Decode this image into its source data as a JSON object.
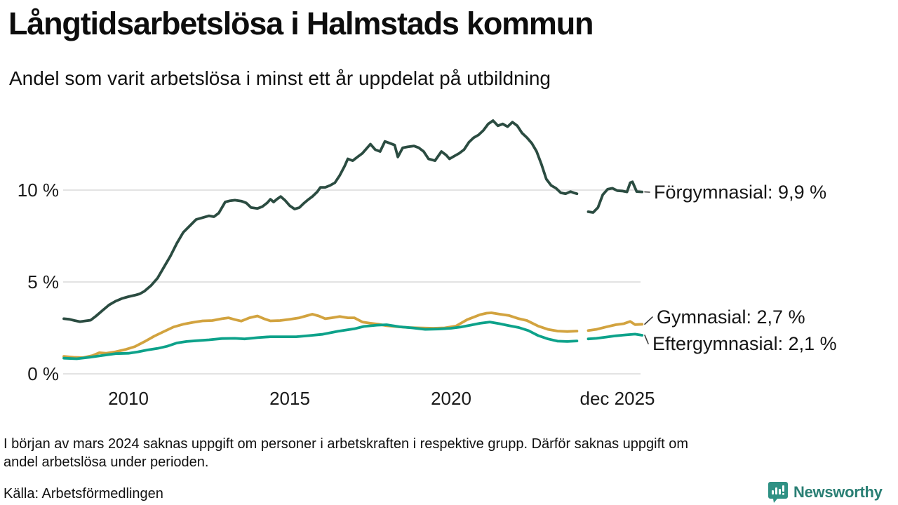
{
  "header": {
    "title": "Långtidsarbetslösa i Halmstads kommun",
    "subtitle": "Andel som varit arbetslösa i minst ett år uppdelat på utbildning"
  },
  "chart_data": {
    "type": "line",
    "title": "Långtidsarbetslösa i Halmstads kommun",
    "subtitle": "Andel som varit arbetslösa i minst ett år uppdelat på utbildning",
    "x_unit": "decimal_year",
    "x_range": [
      2008.0,
      2025.92
    ],
    "ylim": [
      0,
      14.5
    ],
    "grid": "horizontal",
    "gridline_color": "#e3e3e3",
    "data_gap_years": [
      2023.9,
      2024.25
    ],
    "y_ticks": [
      {
        "label": "0 %",
        "value": 0
      },
      {
        "label": "5 %",
        "value": 5
      },
      {
        "label": "10 %",
        "value": 10
      }
    ],
    "x_ticks": [
      {
        "label": "2010",
        "year": 2010
      },
      {
        "label": "2015",
        "year": 2015
      },
      {
        "label": "2020",
        "year": 2020
      },
      {
        "label": "dec 2025",
        "year": 2025.92
      }
    ],
    "series": [
      {
        "name": "Förgymnasial",
        "label": "Förgymnasial: 9,9 %",
        "end_value": 9.9,
        "color": "#2b4c41",
        "segments": [
          [
            [
              2008.0,
              3.0
            ],
            [
              2008.17,
              2.97
            ],
            [
              2008.33,
              2.9
            ],
            [
              2008.5,
              2.84
            ],
            [
              2008.67,
              2.88
            ],
            [
              2008.83,
              2.92
            ],
            [
              2009.0,
              3.15
            ],
            [
              2009.2,
              3.45
            ],
            [
              2009.4,
              3.75
            ],
            [
              2009.6,
              3.95
            ],
            [
              2009.8,
              4.1
            ],
            [
              2010.0,
              4.2
            ],
            [
              2010.2,
              4.28
            ],
            [
              2010.35,
              4.35
            ],
            [
              2010.5,
              4.5
            ],
            [
              2010.7,
              4.8
            ],
            [
              2010.9,
              5.2
            ],
            [
              2011.1,
              5.8
            ],
            [
              2011.3,
              6.4
            ],
            [
              2011.5,
              7.1
            ],
            [
              2011.7,
              7.7
            ],
            [
              2011.9,
              8.05
            ],
            [
              2012.1,
              8.4
            ],
            [
              2012.3,
              8.5
            ],
            [
              2012.5,
              8.6
            ],
            [
              2012.65,
              8.55
            ],
            [
              2012.8,
              8.75
            ],
            [
              2013.0,
              9.35
            ],
            [
              2013.15,
              9.42
            ],
            [
              2013.3,
              9.45
            ],
            [
              2013.5,
              9.4
            ],
            [
              2013.65,
              9.3
            ],
            [
              2013.8,
              9.05
            ],
            [
              2014.0,
              9.0
            ],
            [
              2014.15,
              9.1
            ],
            [
              2014.3,
              9.3
            ],
            [
              2014.4,
              9.5
            ],
            [
              2014.5,
              9.35
            ],
            [
              2014.6,
              9.5
            ],
            [
              2014.72,
              9.65
            ],
            [
              2014.85,
              9.45
            ],
            [
              2015.0,
              9.15
            ],
            [
              2015.15,
              8.97
            ],
            [
              2015.3,
              9.05
            ],
            [
              2015.45,
              9.3
            ],
            [
              2015.55,
              9.45
            ],
            [
              2015.7,
              9.65
            ],
            [
              2015.85,
              9.9
            ],
            [
              2015.95,
              10.15
            ],
            [
              2016.1,
              10.15
            ],
            [
              2016.25,
              10.25
            ],
            [
              2016.4,
              10.4
            ],
            [
              2016.55,
              10.8
            ],
            [
              2016.7,
              11.3
            ],
            [
              2016.8,
              11.7
            ],
            [
              2016.95,
              11.6
            ],
            [
              2017.1,
              11.8
            ],
            [
              2017.25,
              12.0
            ],
            [
              2017.4,
              12.3
            ],
            [
              2017.5,
              12.5
            ],
            [
              2017.65,
              12.2
            ],
            [
              2017.8,
              12.1
            ],
            [
              2017.95,
              12.65
            ],
            [
              2018.1,
              12.55
            ],
            [
              2018.25,
              12.45
            ],
            [
              2018.35,
              11.8
            ],
            [
              2018.5,
              12.3
            ],
            [
              2018.65,
              12.35
            ],
            [
              2018.85,
              12.4
            ],
            [
              2019.0,
              12.3
            ],
            [
              2019.15,
              12.1
            ],
            [
              2019.3,
              11.7
            ],
            [
              2019.5,
              11.6
            ],
            [
              2019.7,
              12.1
            ],
            [
              2019.85,
              11.9
            ],
            [
              2019.95,
              11.7
            ],
            [
              2020.1,
              11.85
            ],
            [
              2020.25,
              12.0
            ],
            [
              2020.4,
              12.2
            ],
            [
              2020.55,
              12.6
            ],
            [
              2020.7,
              12.85
            ],
            [
              2020.85,
              13.0
            ],
            [
              2021.0,
              13.25
            ],
            [
              2021.15,
              13.6
            ],
            [
              2021.3,
              13.78
            ],
            [
              2021.45,
              13.5
            ],
            [
              2021.6,
              13.6
            ],
            [
              2021.75,
              13.45
            ],
            [
              2021.9,
              13.7
            ],
            [
              2022.05,
              13.5
            ],
            [
              2022.2,
              13.1
            ],
            [
              2022.35,
              12.85
            ],
            [
              2022.5,
              12.55
            ],
            [
              2022.65,
              12.1
            ],
            [
              2022.8,
              11.4
            ],
            [
              2022.95,
              10.6
            ],
            [
              2023.1,
              10.25
            ],
            [
              2023.25,
              10.1
            ],
            [
              2023.4,
              9.85
            ],
            [
              2023.55,
              9.8
            ],
            [
              2023.7,
              9.92
            ],
            [
              2023.8,
              9.85
            ],
            [
              2023.9,
              9.8
            ]
          ],
          [
            [
              2024.25,
              8.82
            ],
            [
              2024.4,
              8.78
            ],
            [
              2024.55,
              9.05
            ],
            [
              2024.7,
              9.75
            ],
            [
              2024.85,
              10.05
            ],
            [
              2025.0,
              10.1
            ],
            [
              2025.15,
              9.97
            ],
            [
              2025.3,
              9.95
            ],
            [
              2025.45,
              9.9
            ],
            [
              2025.55,
              10.4
            ],
            [
              2025.62,
              10.45
            ],
            [
              2025.75,
              9.92
            ],
            [
              2025.92,
              9.9
            ]
          ]
        ]
      },
      {
        "name": "Gymnasial",
        "label": "Gymnasial: 2,7 %",
        "end_value": 2.7,
        "color": "#d2a33f",
        "segments": [
          [
            [
              2008.0,
              0.95
            ],
            [
              2008.3,
              0.9
            ],
            [
              2008.6,
              0.88
            ],
            [
              2008.9,
              1.0
            ],
            [
              2009.1,
              1.15
            ],
            [
              2009.3,
              1.12
            ],
            [
              2009.6,
              1.2
            ],
            [
              2009.9,
              1.32
            ],
            [
              2010.2,
              1.48
            ],
            [
              2010.5,
              1.75
            ],
            [
              2010.8,
              2.05
            ],
            [
              2011.1,
              2.3
            ],
            [
              2011.4,
              2.55
            ],
            [
              2011.7,
              2.7
            ],
            [
              2012.0,
              2.8
            ],
            [
              2012.3,
              2.88
            ],
            [
              2012.6,
              2.9
            ],
            [
              2012.9,
              3.0
            ],
            [
              2013.1,
              3.05
            ],
            [
              2013.3,
              2.95
            ],
            [
              2013.5,
              2.87
            ],
            [
              2013.75,
              3.05
            ],
            [
              2014.0,
              3.15
            ],
            [
              2014.2,
              3.0
            ],
            [
              2014.4,
              2.88
            ],
            [
              2014.7,
              2.9
            ],
            [
              2015.0,
              2.97
            ],
            [
              2015.3,
              3.05
            ],
            [
              2015.5,
              3.15
            ],
            [
              2015.7,
              3.25
            ],
            [
              2015.9,
              3.15
            ],
            [
              2016.1,
              3.0
            ],
            [
              2016.3,
              3.05
            ],
            [
              2016.55,
              3.12
            ],
            [
              2016.8,
              3.05
            ],
            [
              2017.0,
              3.05
            ],
            [
              2017.25,
              2.82
            ],
            [
              2017.5,
              2.75
            ],
            [
              2017.75,
              2.7
            ],
            [
              2018.0,
              2.62
            ],
            [
              2018.35,
              2.56
            ],
            [
              2018.7,
              2.52
            ],
            [
              2019.0,
              2.5
            ],
            [
              2019.45,
              2.48
            ],
            [
              2019.8,
              2.5
            ],
            [
              2020.15,
              2.6
            ],
            [
              2020.5,
              2.95
            ],
            [
              2020.9,
              3.22
            ],
            [
              2021.1,
              3.3
            ],
            [
              2021.25,
              3.32
            ],
            [
              2021.5,
              3.25
            ],
            [
              2021.8,
              3.17
            ],
            [
              2022.1,
              3.0
            ],
            [
              2022.35,
              2.9
            ],
            [
              2022.7,
              2.6
            ],
            [
              2023.0,
              2.42
            ],
            [
              2023.3,
              2.33
            ],
            [
              2023.6,
              2.3
            ],
            [
              2023.9,
              2.33
            ]
          ],
          [
            [
              2024.25,
              2.36
            ],
            [
              2024.5,
              2.42
            ],
            [
              2024.8,
              2.55
            ],
            [
              2025.1,
              2.67
            ],
            [
              2025.35,
              2.73
            ],
            [
              2025.55,
              2.85
            ],
            [
              2025.7,
              2.68
            ],
            [
              2025.92,
              2.7
            ]
          ]
        ]
      },
      {
        "name": "Eftergymnasial",
        "label": "Eftergymnasial: 2,1 %",
        "end_value": 2.1,
        "color": "#0da28a",
        "segments": [
          [
            [
              2008.0,
              0.85
            ],
            [
              2008.4,
              0.82
            ],
            [
              2008.8,
              0.9
            ],
            [
              2009.2,
              1.0
            ],
            [
              2009.6,
              1.1
            ],
            [
              2010.0,
              1.12
            ],
            [
              2010.3,
              1.2
            ],
            [
              2010.6,
              1.3
            ],
            [
              2010.9,
              1.38
            ],
            [
              2011.2,
              1.5
            ],
            [
              2011.5,
              1.68
            ],
            [
              2011.8,
              1.76
            ],
            [
              2012.1,
              1.8
            ],
            [
              2012.5,
              1.85
            ],
            [
              2012.9,
              1.92
            ],
            [
              2013.3,
              1.93
            ],
            [
              2013.6,
              1.9
            ],
            [
              2014.0,
              1.97
            ],
            [
              2014.4,
              2.02
            ],
            [
              2014.8,
              2.02
            ],
            [
              2015.2,
              2.02
            ],
            [
              2015.6,
              2.08
            ],
            [
              2016.0,
              2.15
            ],
            [
              2016.5,
              2.32
            ],
            [
              2017.0,
              2.45
            ],
            [
              2017.3,
              2.58
            ],
            [
              2017.7,
              2.65
            ],
            [
              2018.0,
              2.67
            ],
            [
              2018.4,
              2.56
            ],
            [
              2018.8,
              2.5
            ],
            [
              2019.2,
              2.42
            ],
            [
              2019.6,
              2.44
            ],
            [
              2020.0,
              2.48
            ],
            [
              2020.3,
              2.55
            ],
            [
              2020.6,
              2.65
            ],
            [
              2020.9,
              2.75
            ],
            [
              2021.2,
              2.82
            ],
            [
              2021.5,
              2.73
            ],
            [
              2021.8,
              2.62
            ],
            [
              2022.1,
              2.52
            ],
            [
              2022.4,
              2.35
            ],
            [
              2022.7,
              2.08
            ],
            [
              2023.0,
              1.9
            ],
            [
              2023.3,
              1.78
            ],
            [
              2023.6,
              1.76
            ],
            [
              2023.9,
              1.79
            ]
          ],
          [
            [
              2024.25,
              1.9
            ],
            [
              2024.5,
              1.93
            ],
            [
              2024.8,
              2.0
            ],
            [
              2025.1,
              2.07
            ],
            [
              2025.4,
              2.12
            ],
            [
              2025.7,
              2.16
            ],
            [
              2025.92,
              2.1
            ]
          ]
        ]
      }
    ]
  },
  "footer": {
    "note_line1": "I början av mars 2024 saknas uppgift om personer i arbetskraften i respektive grupp. Därför saknas uppgift om",
    "note_line2": "andel arbetslösa under perioden.",
    "source": "Källa: Arbetsförmedlingen"
  },
  "logo": {
    "text": "Newsworthy",
    "text_color": "#2a7f74",
    "icon_color": "#2f9184",
    "icon": "bar-chart-speech-bubble"
  }
}
